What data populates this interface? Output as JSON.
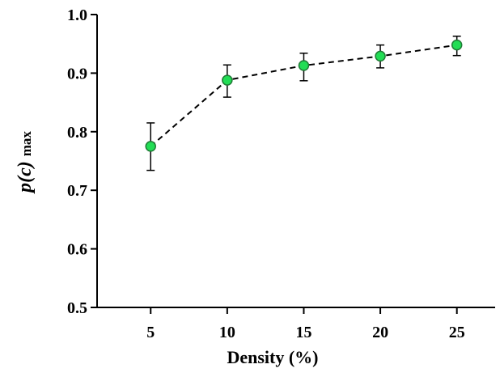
{
  "chart_data": {
    "type": "scatter",
    "title": "",
    "xlabel": "Density (%)",
    "ylabel": {
      "main": "p(c)",
      "subscript": "max"
    },
    "x": [
      5,
      10,
      15,
      20,
      25
    ],
    "series": [
      {
        "name": "p(c) max",
        "values": [
          0.775,
          0.888,
          0.913,
          0.929,
          0.948
        ],
        "error_upper": [
          0.815,
          0.914,
          0.934,
          0.948,
          0.963
        ],
        "error_lower": [
          0.734,
          0.859,
          0.887,
          0.909,
          0.93
        ],
        "line_style": "dashed",
        "marker": "circle"
      }
    ],
    "xlim": [
      1.5,
      27.5
    ],
    "ylim": [
      0.5,
      1.0
    ],
    "xticks": [
      "5",
      "10",
      "15",
      "20",
      "25"
    ],
    "yticks": [
      "0.5",
      "0.6",
      "0.7",
      "0.8",
      "0.9",
      "1.0"
    ],
    "grid": false,
    "colors": {
      "marker_fill": "#22dd55",
      "marker_stroke": "#1f7a35",
      "line": "#000000"
    }
  }
}
